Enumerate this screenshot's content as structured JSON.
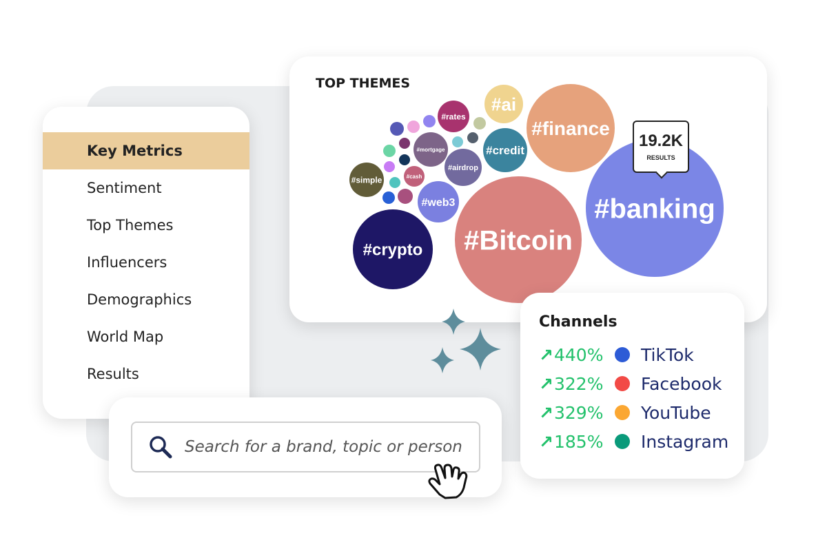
{
  "sidebar": {
    "items": [
      {
        "label": "Key Metrics",
        "active": true
      },
      {
        "label": "Sentiment"
      },
      {
        "label": "Top Themes"
      },
      {
        "label": "Influencers"
      },
      {
        "label": "Demographics"
      },
      {
        "label": "World Map"
      },
      {
        "label": "Results"
      }
    ]
  },
  "themes": {
    "title": "TOP THEMES",
    "tooltip": {
      "value": "19.2K",
      "label": "RESULTS"
    },
    "bubbles": [
      {
        "tag": "#crypto",
        "color": "#1e1766"
      },
      {
        "tag": "#Bitcoin",
        "color": "#d9827e"
      },
      {
        "tag": "#banking",
        "color": "#7b86e6"
      },
      {
        "tag": "#finance",
        "color": "#e6a27c"
      },
      {
        "tag": "#ai",
        "color": "#f0d48f"
      },
      {
        "tag": "#credit",
        "color": "#3b849e"
      },
      {
        "tag": "#rates",
        "color": "#a8336e"
      },
      {
        "tag": "#mortgage",
        "color": "#7d6488"
      },
      {
        "tag": "#airdrop",
        "color": "#726a9e"
      },
      {
        "tag": "#web3",
        "color": "#7b80e0"
      },
      {
        "tag": "#simple",
        "color": "#615c38"
      },
      {
        "tag": "#cash",
        "color": "#c0607a"
      },
      {
        "tag": "",
        "color": "#5559b5"
      },
      {
        "tag": "",
        "color": "#f0a5dc"
      },
      {
        "tag": "",
        "color": "#9184f0"
      },
      {
        "tag": "",
        "color": "#7b356e"
      },
      {
        "tag": "",
        "color": "#6bd5a5"
      },
      {
        "tag": "",
        "color": "#13355a"
      },
      {
        "tag": "",
        "color": "#c87cf5"
      },
      {
        "tag": "",
        "color": "#4fc4be"
      },
      {
        "tag": "",
        "color": "#2860d6"
      },
      {
        "tag": "",
        "color": "#a8507e"
      },
      {
        "tag": "",
        "color": "#7ccbd6"
      },
      {
        "tag": "",
        "color": "#55606e"
      },
      {
        "tag": "",
        "color": "#c2c9a0"
      }
    ]
  },
  "channels": {
    "title": "Channels",
    "items": [
      {
        "change": "440%",
        "name": "TikTok",
        "color": "#2d5bd6",
        "trend": "up"
      },
      {
        "change": "322%",
        "name": "Facebook",
        "color": "#f24a46",
        "trend": "up"
      },
      {
        "change": "329%",
        "name": "YouTube",
        "color": "#fba732",
        "trend": "up"
      },
      {
        "change": "185%",
        "name": "Instagram",
        "color": "#0a9a7a",
        "trend": "up"
      }
    ]
  },
  "search": {
    "placeholder": "Search for a brand, topic or person",
    "icon": "search-icon"
  },
  "accent": "#ebcd9c"
}
